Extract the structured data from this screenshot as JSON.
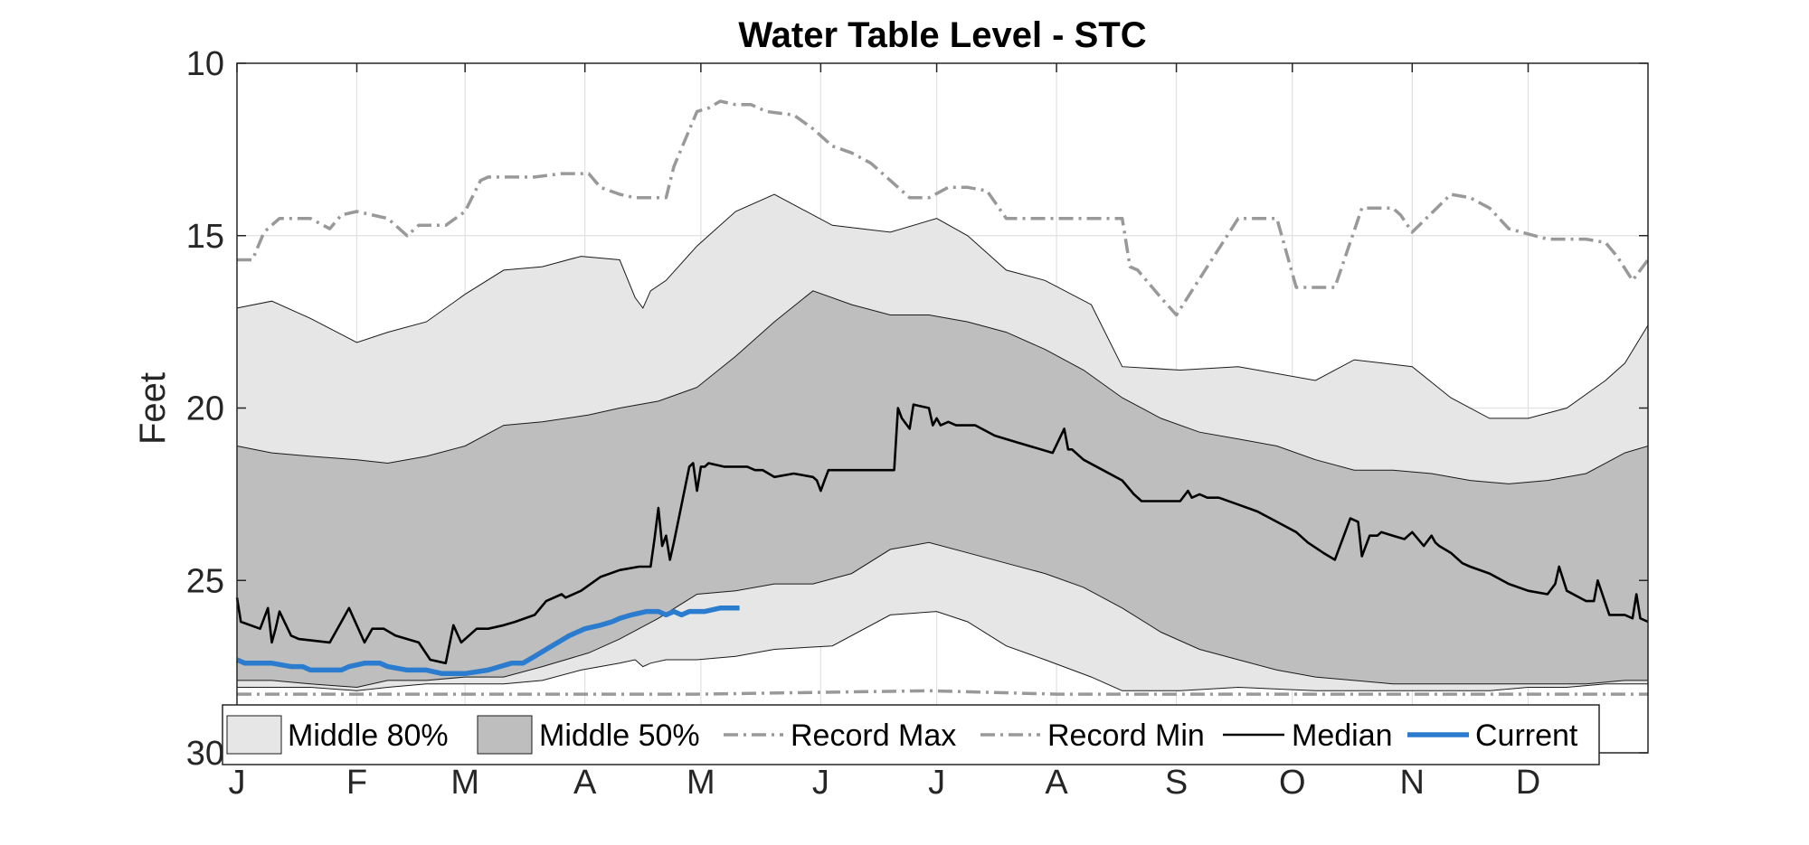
{
  "chart_data": {
    "type": "area",
    "title": "Water Table Level - STC",
    "ylabel": "Feet",
    "xlabel": "",
    "xlim": [
      1,
      366
    ],
    "ylim": [
      10,
      30
    ],
    "y_reversed": true,
    "y_ticks": [
      10,
      15,
      20,
      25,
      30
    ],
    "x_ticks": [
      {
        "day": 1,
        "label": "J"
      },
      {
        "day": 32,
        "label": "F"
      },
      {
        "day": 60,
        "label": "M"
      },
      {
        "day": 91,
        "label": "A"
      },
      {
        "day": 121,
        "label": "M"
      },
      {
        "day": 152,
        "label": "J"
      },
      {
        "day": 182,
        "label": "J"
      },
      {
        "day": 213,
        "label": "A"
      },
      {
        "day": 244,
        "label": "S"
      },
      {
        "day": 274,
        "label": "O"
      },
      {
        "day": 305,
        "label": "N"
      },
      {
        "day": 335,
        "label": "D"
      }
    ],
    "grid": true,
    "legend_position": "bottom-inside",
    "legend": [
      "Middle 80%",
      "Middle 50%",
      "Record Max",
      "Record Min",
      "Median",
      "Current"
    ],
    "colors": {
      "band80": "#e6e6e6",
      "band50": "#bebebe",
      "record": "#999999",
      "median": "#000000",
      "current": "#2b7ccf",
      "grid": "#e1e1e1",
      "axis": "#262626"
    },
    "series": [
      {
        "name": "Record Max",
        "x": [
          1,
          5,
          8,
          12,
          20,
          25,
          28,
          32,
          40,
          45,
          48,
          52,
          55,
          60,
          64,
          66,
          70,
          78,
          85,
          92,
          95,
          100,
          104,
          112,
          114,
          120,
          123,
          126,
          130,
          134,
          138,
          145,
          150,
          155,
          160,
          165,
          170,
          175,
          180,
          185,
          190,
          195,
          200,
          210,
          216,
          219,
          225,
          230,
          232,
          234,
          240,
          244,
          260,
          264,
          270,
          275,
          279,
          285,
          292,
          300,
          302,
          305,
          315,
          320,
          325,
          330,
          340,
          350,
          355,
          358,
          362,
          366
        ],
        "y": [
          15.7,
          15.7,
          14.9,
          14.5,
          14.5,
          14.8,
          14.4,
          14.3,
          14.5,
          15.0,
          14.7,
          14.7,
          14.7,
          14.3,
          13.4,
          13.3,
          13.3,
          13.3,
          13.2,
          13.2,
          13.6,
          13.8,
          13.9,
          13.9,
          13.0,
          11.4,
          11.3,
          11.1,
          11.2,
          11.2,
          11.4,
          11.5,
          11.9,
          12.4,
          12.6,
          12.9,
          13.4,
          13.9,
          13.9,
          13.6,
          13.6,
          13.7,
          14.5,
          14.5,
          14.5,
          14.5,
          14.5,
          14.5,
          15.9,
          16.0,
          16.8,
          17.3,
          14.5,
          14.5,
          14.5,
          16.5,
          16.5,
          16.5,
          14.2,
          14.2,
          14.4,
          14.9,
          13.8,
          13.9,
          14.2,
          14.8,
          15.1,
          15.1,
          15.2,
          15.6,
          16.3,
          15.7
        ]
      },
      {
        "name": "Record Min",
        "x": [
          1,
          20,
          60,
          120,
          180,
          213,
          230,
          275,
          300,
          330,
          366
        ],
        "y": [
          28.3,
          28.3,
          28.3,
          28.3,
          28.2,
          28.3,
          28.3,
          28.3,
          28.3,
          28.3,
          28.3
        ]
      },
      {
        "name": "Median",
        "x": [
          1,
          2,
          7,
          9,
          10,
          11,
          12,
          15,
          17,
          25,
          30,
          34,
          36,
          39,
          42,
          48,
          51,
          55,
          57,
          59,
          60,
          63,
          66,
          70,
          73,
          78,
          81,
          85,
          86,
          90,
          95,
          100,
          105,
          108,
          109,
          110,
          111,
          112,
          113,
          114,
          118,
          119,
          120,
          121,
          122,
          123,
          127,
          133,
          135,
          137,
          140,
          145,
          150,
          151,
          152,
          153,
          154,
          156,
          160,
          166,
          171,
          172,
          173,
          175,
          176,
          180,
          181,
          182,
          183,
          185,
          187,
          190,
          192,
          197,
          203,
          212,
          215,
          216,
          217,
          220,
          225,
          230,
          233,
          235,
          240,
          245,
          247,
          248,
          250,
          252,
          255,
          260,
          265,
          270,
          275,
          278,
          282,
          285,
          289,
          291,
          292,
          294,
          296,
          297,
          300,
          303,
          305,
          308,
          310,
          311,
          312,
          315,
          318,
          320,
          325,
          330,
          335,
          340,
          342,
          343,
          345,
          350,
          352,
          353,
          356,
          360,
          362,
          363,
          364,
          366
        ],
        "y": [
          25.5,
          26.2,
          26.4,
          25.8,
          26.8,
          26.4,
          25.9,
          26.6,
          26.7,
          26.8,
          25.8,
          26.8,
          26.4,
          26.4,
          26.6,
          26.8,
          27.3,
          27.4,
          26.3,
          26.8,
          26.7,
          26.4,
          26.4,
          26.3,
          26.2,
          26.0,
          25.6,
          25.4,
          25.5,
          25.3,
          24.9,
          24.7,
          24.6,
          24.6,
          23.8,
          22.9,
          24.0,
          23.7,
          24.4,
          23.9,
          21.7,
          21.6,
          22.4,
          21.7,
          21.7,
          21.6,
          21.7,
          21.7,
          21.8,
          21.8,
          22.0,
          21.9,
          22.0,
          22.1,
          22.4,
          22.1,
          21.8,
          21.8,
          21.8,
          21.8,
          21.8,
          20.0,
          20.3,
          20.6,
          19.9,
          20.0,
          20.5,
          20.3,
          20.5,
          20.4,
          20.5,
          20.5,
          20.5,
          20.8,
          21.0,
          21.3,
          20.6,
          21.2,
          21.2,
          21.5,
          21.8,
          22.1,
          22.5,
          22.7,
          22.7,
          22.7,
          22.4,
          22.6,
          22.5,
          22.6,
          22.6,
          22.8,
          23.0,
          23.3,
          23.6,
          23.9,
          24.2,
          24.4,
          23.2,
          23.3,
          24.3,
          23.7,
          23.7,
          23.6,
          23.7,
          23.8,
          23.6,
          24.0,
          23.7,
          23.9,
          24.0,
          24.2,
          24.5,
          24.6,
          24.8,
          25.1,
          25.3,
          25.4,
          25.1,
          24.6,
          25.3,
          25.6,
          25.6,
          25.0,
          26.0,
          26.0,
          26.1,
          25.4,
          26.1,
          26.2
        ]
      },
      {
        "name": "Current",
        "x": [
          1,
          3,
          5,
          10,
          15,
          18,
          20,
          25,
          28,
          30,
          34,
          36,
          38,
          40,
          45,
          50,
          54,
          60,
          66,
          69,
          72,
          75,
          78,
          81,
          84,
          87,
          89,
          91,
          95,
          98,
          100,
          103,
          107,
          110,
          112,
          114,
          116,
          118,
          120,
          122,
          126,
          131
        ],
        "y": [
          27.3,
          27.4,
          27.4,
          27.4,
          27.5,
          27.5,
          27.6,
          27.6,
          27.6,
          27.5,
          27.4,
          27.4,
          27.4,
          27.5,
          27.6,
          27.6,
          27.7,
          27.7,
          27.6,
          27.5,
          27.4,
          27.4,
          27.2,
          27.0,
          26.8,
          26.6,
          26.5,
          26.4,
          26.3,
          26.2,
          26.1,
          26.0,
          25.9,
          25.9,
          26.0,
          25.9,
          26.0,
          25.9,
          25.9,
          25.9,
          25.8,
          25.8
        ]
      },
      {
        "name": "Middle 80%",
        "x": [
          1,
          10,
          20,
          32,
          40,
          50,
          60,
          70,
          80,
          90,
          100,
          104,
          106,
          108,
          112,
          120,
          130,
          140,
          155,
          170,
          182,
          190,
          200,
          210,
          222,
          230,
          245,
          260,
          280,
          290,
          305,
          315,
          325,
          335,
          345,
          355,
          360,
          366
        ],
        "y_lower": [
          28.1,
          28.1,
          28.1,
          28.2,
          28.1,
          28.0,
          28.0,
          28.0,
          27.9,
          27.6,
          27.4,
          27.3,
          27.5,
          27.4,
          27.3,
          27.3,
          27.2,
          27.0,
          26.9,
          26.0,
          25.9,
          26.2,
          26.9,
          27.3,
          27.8,
          28.2,
          28.2,
          28.1,
          28.2,
          28.2,
          28.2,
          28.2,
          28.2,
          28.1,
          28.1,
          28.0,
          28.0,
          28.0
        ],
        "y_upper": [
          17.1,
          16.9,
          17.4,
          18.1,
          17.8,
          17.5,
          16.7,
          16.0,
          15.9,
          15.6,
          15.7,
          16.8,
          17.1,
          16.6,
          16.3,
          15.3,
          14.3,
          13.8,
          14.7,
          14.9,
          14.5,
          15.0,
          16.0,
          16.3,
          17.0,
          18.8,
          18.9,
          18.8,
          19.2,
          18.6,
          18.8,
          19.7,
          20.3,
          20.3,
          20.0,
          19.2,
          18.7,
          17.6
        ]
      },
      {
        "name": "Middle 50%",
        "x": [
          1,
          10,
          20,
          32,
          40,
          50,
          60,
          70,
          80,
          92,
          100,
          110,
          120,
          130,
          140,
          150,
          160,
          170,
          180,
          190,
          200,
          210,
          220,
          230,
          240,
          250,
          260,
          270,
          280,
          290,
          300,
          310,
          320,
          330,
          340,
          350,
          360,
          366
        ],
        "y_lower": [
          27.9,
          27.9,
          28.0,
          28.1,
          27.9,
          27.9,
          27.8,
          27.8,
          27.5,
          27.1,
          26.7,
          26.1,
          25.4,
          25.3,
          25.1,
          25.1,
          24.8,
          24.1,
          23.9,
          24.2,
          24.5,
          24.8,
          25.2,
          25.8,
          26.5,
          27.0,
          27.3,
          27.6,
          27.8,
          27.9,
          28.0,
          28.0,
          28.0,
          28.0,
          28.0,
          28.0,
          27.9,
          27.9
        ],
        "y_upper": [
          21.1,
          21.3,
          21.4,
          21.5,
          21.6,
          21.4,
          21.1,
          20.5,
          20.4,
          20.2,
          20.0,
          19.8,
          19.4,
          18.5,
          17.5,
          16.6,
          17.0,
          17.3,
          17.3,
          17.5,
          17.8,
          18.3,
          18.9,
          19.7,
          20.3,
          20.7,
          20.9,
          21.1,
          21.5,
          21.8,
          21.8,
          21.9,
          22.1,
          22.2,
          22.1,
          21.9,
          21.3,
          21.1
        ]
      }
    ]
  }
}
